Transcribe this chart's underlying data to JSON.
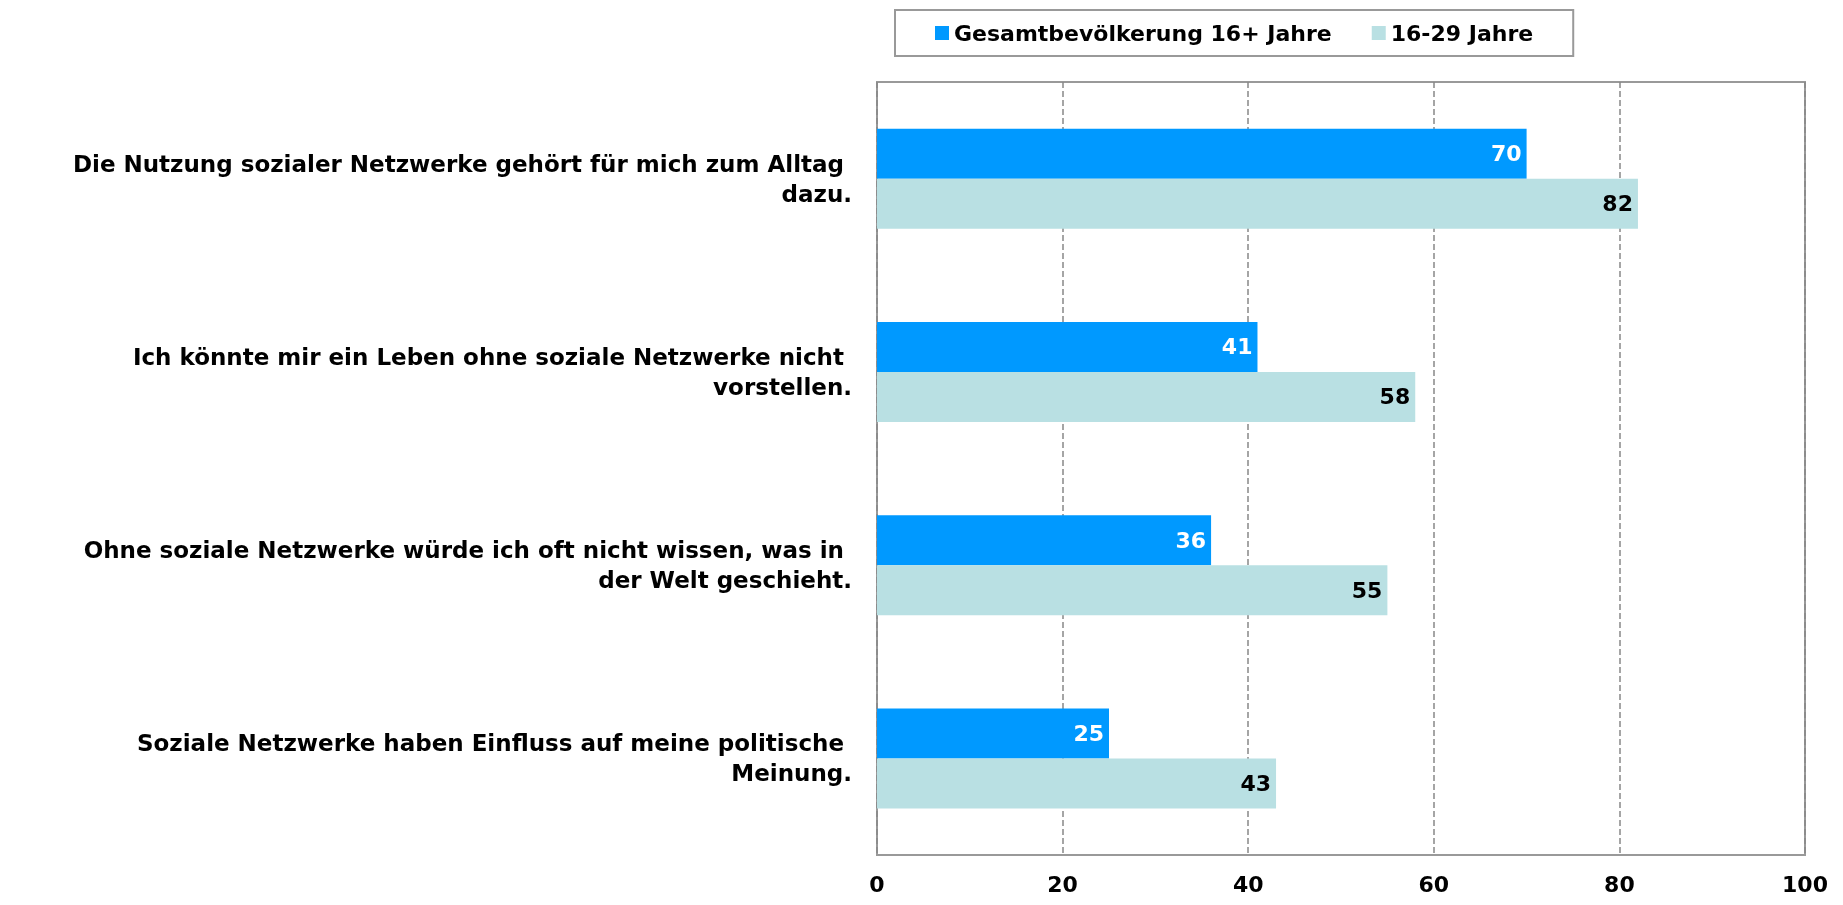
{
  "chart_data": {
    "type": "bar",
    "orientation": "horizontal",
    "categories": [
      "Die Nutzung sozialer Netzwerke gehört für mich zum Alltag dazu.",
      "Ich könnte mir ein Leben ohne soziale Netzwerke nicht vorstellen.",
      "Ohne soziale Netzwerke würde ich oft nicht wissen, was in der Welt geschieht.",
      "Soziale Netzwerke haben Einfluss auf meine politische Meinung."
    ],
    "series": [
      {
        "name": "Gesamtbevölkerung 16+ Jahre",
        "color": "#0099ff",
        "values": [
          70,
          41,
          36,
          25
        ]
      },
      {
        "name": "16-29 Jahre",
        "color": "#b9e0e3",
        "values": [
          82,
          58,
          55,
          43
        ]
      }
    ],
    "xlim": [
      0,
      100
    ],
    "xticks": [
      0,
      20,
      40,
      60,
      80,
      100
    ],
    "grid": "x",
    "legend": "top",
    "data_labels": true
  }
}
